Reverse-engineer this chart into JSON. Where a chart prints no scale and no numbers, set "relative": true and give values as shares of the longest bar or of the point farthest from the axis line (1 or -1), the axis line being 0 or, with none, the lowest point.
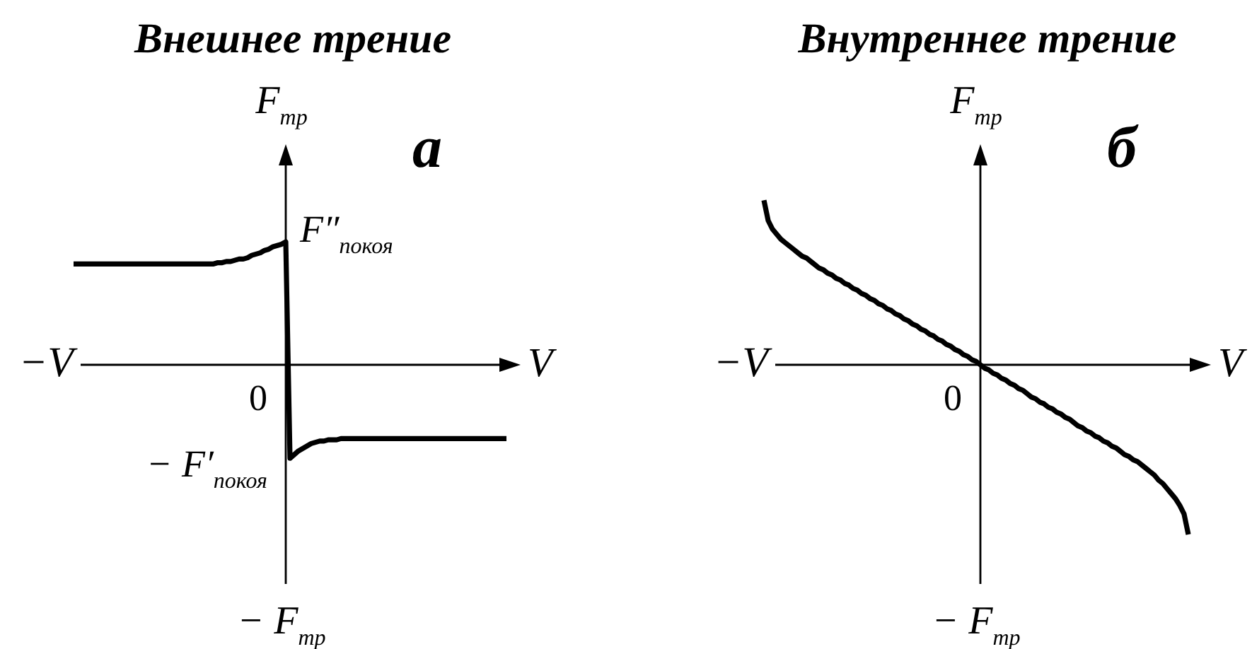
{
  "chart_data": [
    {
      "type": "line",
      "title": "Внешнее трение",
      "relative": true,
      "color": "#000000",
      "xlabel": "V",
      "ylabel": "F$_{тр}$",
      "categories": [
        null,
        null,
        null,
        null,
        null,
        null,
        null,
        null,
        null,
        null,
        null,
        null,
        null,
        null,
        null,
        null,
        null,
        null,
        null,
        null,
        null,
        null,
        null,
        null,
        null,
        null,
        null,
        null,
        null,
        null,
        null,
        null,
        null,
        null,
        null,
        null,
        null,
        null,
        null,
        null,
        null,
        null,
        null,
        null,
        null,
        null,
        null,
        null,
        null,
        null,
        null,
        null,
        null,
        null,
        null,
        null,
        null,
        null,
        null,
        null,
        null,
        null,
        null,
        null,
        null,
        null,
        null,
        null,
        null,
        null,
        null,
        null,
        null,
        null,
        null,
        null,
        null,
        null,
        null,
        null,
        null,
        null,
        null,
        null,
        null,
        null,
        null,
        null,
        null,
        null,
        null,
        null,
        null,
        null,
        null,
        null,
        null,
        null,
        null,
        null,
        null,
        null,
        null
      ],
      "values": [
        0.82,
        0.82,
        0.82,
        0.82,
        0.82,
        0.82,
        0.82,
        0.82,
        0.82,
        0.82,
        0.82,
        0.82,
        0.82,
        0.82,
        0.82,
        0.82,
        0.82,
        0.82,
        0.82,
        0.82,
        0.82,
        0.82,
        0.82,
        0.82,
        0.82,
        0.82,
        0.82,
        0.82,
        0.82,
        0.82,
        0.82,
        0.82,
        0.82,
        0.82,
        0.83,
        0.83,
        0.84,
        0.84,
        0.85,
        0.86,
        0.86,
        0.87,
        0.89,
        0.9,
        0.91,
        0.93,
        0.94,
        0.96,
        0.97,
        0.98,
        1,
        -0.76,
        -0.73,
        -0.7,
        -0.68,
        -0.66,
        -0.64,
        -0.63,
        -0.62,
        -0.62,
        -0.61,
        -0.61,
        -0.61,
        -0.6,
        -0.6,
        -0.6,
        -0.6,
        -0.6,
        -0.6,
        -0.6,
        -0.6,
        -0.6,
        -0.6,
        -0.6,
        -0.6,
        -0.6,
        -0.6,
        -0.6,
        -0.6,
        -0.6,
        -0.6,
        -0.6,
        -0.6,
        -0.6,
        -0.6,
        -0.6,
        -0.6,
        -0.6,
        -0.6,
        -0.6,
        -0.6,
        -0.6,
        -0.6,
        -0.6,
        -0.6,
        -0.6,
        -0.6,
        -0.6,
        -0.6,
        -0.6,
        -0.6,
        -0.6,
        -0.6
      ],
      "annotations": [
        "а",
        "0",
        "−V",
        "− F$_{тр}$",
        "F″$_{покоя}$",
        "− F′$_{покоя}$"
      ]
    },
    {
      "type": "line",
      "title": "Внутреннее трение",
      "relative": true,
      "color": "#000000",
      "xlabel": "V",
      "ylabel": "F$_{тр}$",
      "categories": [
        null,
        null,
        null,
        null,
        null,
        null,
        null,
        null,
        null,
        null,
        null,
        null,
        null,
        null,
        null,
        null,
        null,
        null,
        null,
        null,
        null,
        null,
        null,
        null,
        null,
        null,
        null,
        null,
        null,
        null,
        null,
        null,
        null,
        null,
        null,
        null,
        null,
        null,
        null,
        null,
        null,
        null,
        null,
        null,
        null,
        null,
        null,
        null,
        null,
        null,
        null,
        null,
        null,
        null,
        null,
        null,
        null,
        null,
        null,
        null,
        null,
        null,
        null,
        null,
        null,
        null,
        null,
        null,
        null,
        null,
        null,
        null,
        null,
        null,
        null,
        null,
        null,
        null,
        null,
        null,
        null,
        null,
        null,
        null,
        null,
        null,
        null,
        null,
        null,
        null,
        null,
        null,
        null,
        null,
        null,
        null,
        null,
        null,
        null,
        null,
        null
      ],
      "values": [
        0.97,
        0.85,
        0.8,
        0.77,
        0.74,
        0.72,
        0.7,
        0.68,
        0.66,
        0.64,
        0.63,
        0.61,
        0.59,
        0.57,
        0.56,
        0.54,
        0.53,
        0.51,
        0.5,
        0.48,
        0.47,
        0.45,
        0.44,
        0.42,
        0.41,
        0.39,
        0.38,
        0.36,
        0.35,
        0.33,
        0.32,
        0.3,
        0.29,
        0.27,
        0.26,
        0.24,
        0.23,
        0.21,
        0.2,
        0.18,
        0.17,
        0.15,
        0.14,
        0.12,
        0.11,
        0.09,
        0.08,
        0.06,
        0.05,
        0.03,
        0.02,
        0,
        -0.02,
        -0.03,
        -0.05,
        -0.06,
        -0.08,
        -0.09,
        -0.11,
        -0.12,
        -0.14,
        -0.15,
        -0.17,
        -0.19,
        -0.2,
        -0.22,
        -0.23,
        -0.25,
        -0.26,
        -0.28,
        -0.29,
        -0.31,
        -0.32,
        -0.34,
        -0.36,
        -0.37,
        -0.39,
        -0.4,
        -0.42,
        -0.43,
        -0.45,
        -0.46,
        -0.48,
        -0.49,
        -0.51,
        -0.53,
        -0.54,
        -0.56,
        -0.57,
        -0.59,
        -0.61,
        -0.63,
        -0.65,
        -0.68,
        -0.7,
        -0.73,
        -0.76,
        -0.79,
        -0.83,
        -0.88,
        -1
      ],
      "annotations": [
        "б",
        "0",
        "−V",
        "− F$_{тр}$"
      ]
    }
  ]
}
